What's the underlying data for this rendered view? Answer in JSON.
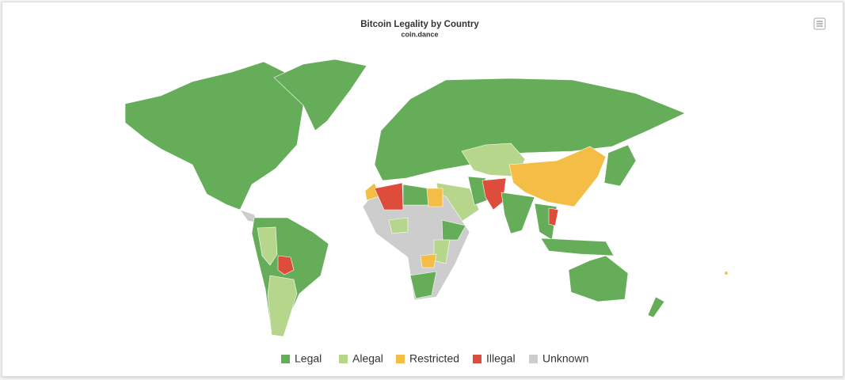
{
  "header": {
    "title": "Bitcoin Legality by Country",
    "subtitle": "coin.dance"
  },
  "legend": [
    {
      "label": "Legal",
      "color": "#66ad5a"
    },
    {
      "label": "Alegal",
      "color": "#b6d68b"
    },
    {
      "label": "Restricted",
      "color": "#f4bd45"
    },
    {
      "label": "Illegal",
      "color": "#de4c3b"
    },
    {
      "label": "Unknown",
      "color": "#cdcdcd"
    }
  ]
}
